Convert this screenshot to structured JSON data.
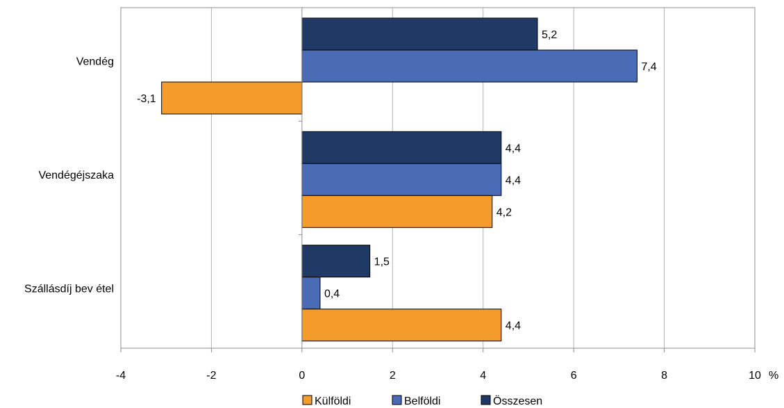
{
  "chart_data": {
    "type": "bar",
    "orientation": "horizontal",
    "categories": [
      "Vendég",
      "Vendégéjszaka",
      "Szállásdíj bev étel"
    ],
    "series": [
      {
        "name": "Külföldi",
        "color": "#F39C2C",
        "values": [
          -3.1,
          4.2,
          4.4
        ]
      },
      {
        "name": "Belföldi",
        "color": "#4A6BB5",
        "values": [
          7.4,
          4.4,
          0.4
        ]
      },
      {
        "name": "Összesen",
        "color": "#203A66",
        "values": [
          5.2,
          4.4,
          1.5
        ]
      }
    ],
    "data_labels": [
      [
        "-3,1",
        "4,2",
        "4,4"
      ],
      [
        "7,4",
        "4,4",
        "0,4"
      ],
      [
        "5,2",
        "4,4",
        "1,5"
      ]
    ],
    "xlim": [
      -4,
      10
    ],
    "x_ticks": [
      -4,
      -2,
      0,
      2,
      4,
      6,
      8,
      10
    ],
    "x_tick_labels": [
      "-4",
      "-2",
      "0",
      "2",
      "4",
      "6",
      "8",
      "10"
    ],
    "x_unit": "%",
    "grid": true,
    "legend_position": "bottom"
  }
}
